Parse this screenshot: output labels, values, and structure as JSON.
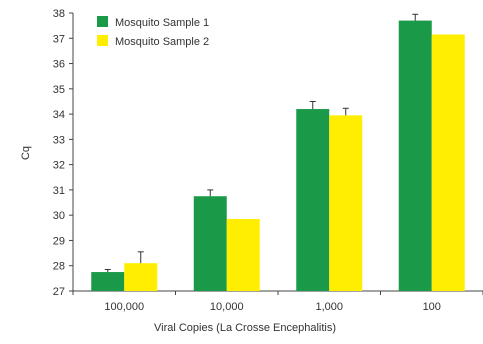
{
  "chart_data": {
    "type": "bar",
    "title": "",
    "xlabel": "Viral Copies (La Crosse Encephalitis)",
    "ylabel": "Cq",
    "categories": [
      "100,000",
      "10,000",
      "1,000",
      "100"
    ],
    "ylim": [
      27,
      38
    ],
    "yticks": [
      27,
      28,
      29,
      30,
      31,
      32,
      33,
      34,
      35,
      36,
      37,
      38
    ],
    "grid": false,
    "legend_position": "top-left",
    "series": [
      {
        "name": "Mosquito Sample 1",
        "color": "#1a9a48",
        "values": [
          27.75,
          30.75,
          34.2,
          37.7
        ],
        "error": [
          0.1,
          0.25,
          0.3,
          0.25
        ]
      },
      {
        "name": "Mosquito Sample 2",
        "color": "#ffee00",
        "values": [
          28.1,
          29.85,
          33.95,
          37.15
        ],
        "error": [
          0.45,
          0,
          0.28,
          0
        ]
      }
    ]
  }
}
